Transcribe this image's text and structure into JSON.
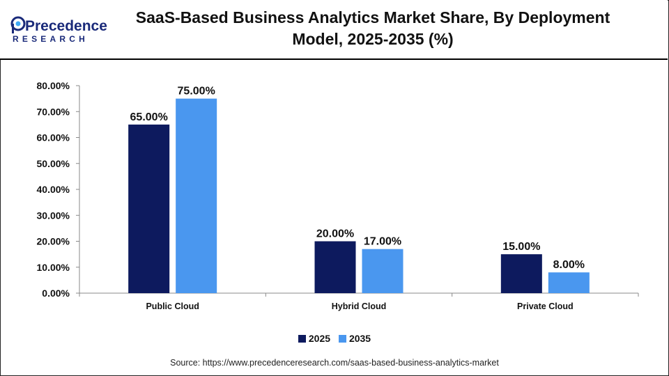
{
  "brand": {
    "name_line1": "Precedence",
    "name_line2": "RESEARCH",
    "primary_color": "#1a2a7a",
    "accent_color": "#3fa9f5"
  },
  "title": "SaaS-Based Business Analytics Market Share, By Deployment Model, 2025-2035 (%)",
  "source": "Source: https://www.precedenceresearch.com/saas-based-business-analytics-market",
  "chart_data": {
    "type": "bar",
    "categories": [
      "Public Cloud",
      "Hybrid Cloud",
      "Private Cloud"
    ],
    "series": [
      {
        "name": "2025",
        "values": [
          65.0,
          20.0,
          15.0
        ],
        "color": "#0d1a5e",
        "labels": [
          "65.00%",
          "20.00%",
          "15.00%"
        ]
      },
      {
        "name": "2035",
        "values": [
          75.0,
          17.0,
          8.0
        ],
        "color": "#4a97ef",
        "labels": [
          "75.00%",
          "17.00%",
          "8.00%"
        ]
      }
    ],
    "ylim": [
      0,
      80
    ],
    "yticks": [
      "0.00%",
      "10.00%",
      "20.00%",
      "30.00%",
      "40.00%",
      "50.00%",
      "60.00%",
      "70.00%",
      "80.00%"
    ],
    "grid": false,
    "legend": "bottom-center",
    "xlabel": "",
    "ylabel": ""
  }
}
